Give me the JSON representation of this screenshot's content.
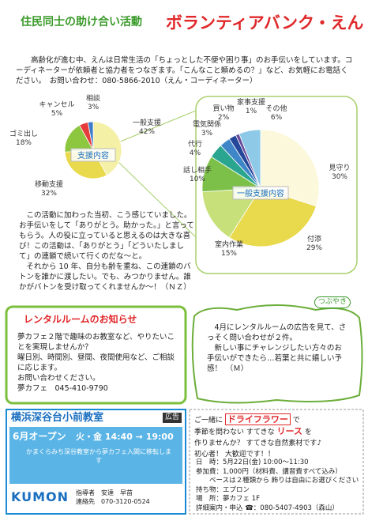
{
  "header": {
    "subtitle": "住民同士の助け合い活動",
    "title": "ボランティアバンク・えん"
  },
  "intro": {
    "text": "高齢化が進む中、えんは日常生活の「ちょっとした不便や困り事」のお手伝いをしています。コーディネーターが依頼者と協力者をつなぎます。「こんなこと頼めるの？」など、お気軽にお電話ください。",
    "contact": "お問い合わせ：080-5866-2010（えん・コーディネーター）"
  },
  "chart_data": [
    {
      "type": "pie",
      "title": "支援内容",
      "categories": [
        "一般支援",
        "移動支援",
        "ゴミ出し",
        "キャンセル",
        "相談"
      ],
      "values": [
        42,
        32,
        18,
        5,
        3
      ],
      "value_labels": [
        "42%",
        "32%",
        "18%",
        "5%",
        "3%"
      ],
      "colors": [
        "#f4f0a6",
        "#e9d94c",
        "#8dc63f",
        "#e63b3b",
        "#3d7cc9"
      ]
    },
    {
      "type": "pie",
      "title": "一般支援内容",
      "categories": [
        "見守り",
        "付添",
        "室内作業",
        "話し相手",
        "代行",
        "電気関係",
        "買い物",
        "家事支援",
        "その他"
      ],
      "values": [
        30,
        29,
        15,
        10,
        4,
        3,
        2,
        1,
        6
      ],
      "value_labels": [
        "30%",
        "29%",
        "15%",
        "10%",
        "4%",
        "3%",
        "2%",
        "1%",
        "6%"
      ],
      "colors": [
        "#fbf8dc",
        "#e9d94c",
        "#c7e07a",
        "#7cc04a",
        "#2aa58f",
        "#3f86c8",
        "#24479a",
        "#6a4c9c",
        "#8ec9e8"
      ]
    }
  ],
  "story": {
    "paragraphs": [
      "この活動に加わった当初、こう感じていました。お手伝いをして「ありがとう。助かった。」と言ってもらう。人の役に立っていると思えるのは大きな喜び！この活動は、「ありがとう」「どういたしまして」の連鎖で続いて行くのだな～と。",
      "それから 10 年、自分も齢を重ね、この連鎖のバトンを誰かに渡したい。でも、みつかりません。誰かがバトンを受け取ってくれませんか～！（ＮＺ）"
    ]
  },
  "rental": {
    "title": "レンタルルームのお知らせ",
    "lines": [
      "夢カフェ２階で趣味のお教室など、やりたいことを実現しませんか？",
      "曜日別、時間別、昼間、夜間使用など、ご相談に応じます。",
      "お問い合わせください。",
      "夢カフェ　045-410-9790"
    ]
  },
  "tsubuyaki": {
    "label": "つぶやき",
    "lines": [
      "4月にレンタルルームの広告を見て、さっそく問い合わせが２件。",
      "新しい事にチャレンジしたい方々のお手伝いができたら…若葉と共に嬉しい予感！　（Ｍ）"
    ]
  },
  "kumon": {
    "title": "横浜深谷台小前教室",
    "ad": "広告",
    "open": "6月オープン",
    "time": "火・金 14:40 → 19:00",
    "move": "かまくらみち深谷教室から夢カフェ入間に移転します",
    "logo": "KUMON",
    "teacher": "指導者　安達　早苗",
    "phone": "連絡先　070-3120-0524"
  },
  "flower": {
    "l1a": "ご一緒に",
    "w1": "ドライフラワー",
    "l1b": "で",
    "l2a": "季節を問わない すてきな",
    "w2": "リース",
    "l2b": "を",
    "l3": "作りませんか？ すてきな自然素材です♪",
    "l4": "初心者！ 大歓迎です！！",
    "details": [
      "日　時：5月22日(金) 10:00～11:30",
      "参加費：1,000円（材料費、講習費すべて込み）",
      "ベースは２種類から 飾りは自由にお選びください",
      "持ち物：エプロン",
      "場　所：夢カフェ 1F",
      "詳細案内・申込 ☎：080-5407-4903（森山）"
    ]
  }
}
